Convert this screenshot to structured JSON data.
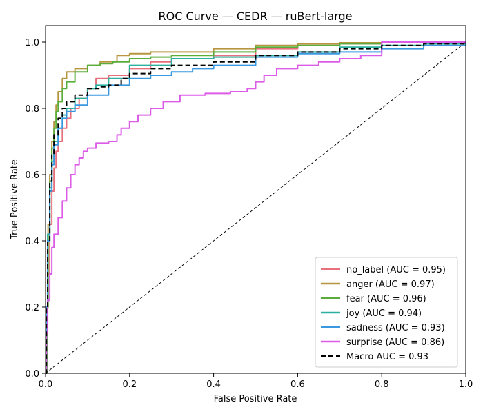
{
  "chart_data": {
    "type": "line",
    "title": "ROC Curve — CEDR — ruBert-large",
    "xlabel": "False Positive Rate",
    "ylabel": "True Positive Rate",
    "xlim": [
      0,
      1
    ],
    "ylim": [
      0,
      1.05
    ],
    "xticks": [
      0.0,
      0.2,
      0.4,
      0.6,
      0.8,
      1.0
    ],
    "yticks": [
      0.0,
      0.2,
      0.4,
      0.6,
      0.8,
      1.0
    ],
    "grid": false,
    "legend_position": "lower-right",
    "series": [
      {
        "name": "no_label (AUC = 0.95)",
        "color": "#e8707c",
        "style": "solid",
        "x": [
          0,
          0.002,
          0.005,
          0.01,
          0.015,
          0.02,
          0.025,
          0.03,
          0.04,
          0.05,
          0.06,
          0.08,
          0.1,
          0.12,
          0.15,
          0.2,
          0.25,
          0.3,
          0.4,
          0.5,
          0.6,
          0.7,
          0.8,
          0.9,
          1.0
        ],
        "y": [
          0,
          0.15,
          0.3,
          0.45,
          0.55,
          0.62,
          0.67,
          0.7,
          0.74,
          0.77,
          0.8,
          0.83,
          0.86,
          0.89,
          0.9,
          0.92,
          0.94,
          0.95,
          0.96,
          0.98,
          0.99,
          0.995,
          0.998,
          1.0,
          1.0
        ]
      },
      {
        "name": "anger (AUC = 0.97)",
        "color": "#b89640",
        "style": "solid",
        "x": [
          0,
          0.003,
          0.006,
          0.01,
          0.015,
          0.02,
          0.025,
          0.03,
          0.04,
          0.05,
          0.07,
          0.1,
          0.13,
          0.17,
          0.2,
          0.25,
          0.3,
          0.4,
          0.5,
          0.6,
          0.7,
          0.8,
          0.9,
          1.0
        ],
        "y": [
          0,
          0.2,
          0.45,
          0.6,
          0.7,
          0.76,
          0.81,
          0.85,
          0.89,
          0.91,
          0.92,
          0.93,
          0.94,
          0.96,
          0.965,
          0.97,
          0.97,
          0.98,
          0.99,
          0.995,
          0.998,
          1.0,
          1.0,
          1.0
        ]
      },
      {
        "name": "fear (AUC = 0.96)",
        "color": "#5aad3a",
        "style": "solid",
        "x": [
          0,
          0.003,
          0.006,
          0.01,
          0.015,
          0.02,
          0.025,
          0.03,
          0.04,
          0.05,
          0.07,
          0.1,
          0.13,
          0.16,
          0.2,
          0.25,
          0.3,
          0.4,
          0.5,
          0.6,
          0.7,
          0.8,
          0.9,
          1.0
        ],
        "y": [
          0,
          0.2,
          0.42,
          0.58,
          0.68,
          0.74,
          0.79,
          0.82,
          0.86,
          0.88,
          0.91,
          0.93,
          0.935,
          0.94,
          0.95,
          0.955,
          0.96,
          0.97,
          0.985,
          0.99,
          0.995,
          0.998,
          1.0,
          1.0
        ]
      },
      {
        "name": "joy (AUC = 0.94)",
        "color": "#2bb0a0",
        "style": "solid",
        "x": [
          0,
          0.002,
          0.005,
          0.01,
          0.015,
          0.02,
          0.03,
          0.04,
          0.05,
          0.07,
          0.1,
          0.12,
          0.15,
          0.2,
          0.3,
          0.4,
          0.5,
          0.6,
          0.7,
          0.8,
          0.9,
          1.0
        ],
        "y": [
          0,
          0.2,
          0.42,
          0.56,
          0.64,
          0.7,
          0.74,
          0.78,
          0.8,
          0.83,
          0.86,
          0.87,
          0.89,
          0.93,
          0.95,
          0.955,
          0.96,
          0.97,
          0.985,
          0.99,
          0.995,
          1.0
        ]
      },
      {
        "name": "sadness (AUC = 0.93)",
        "color": "#3a98e0",
        "style": "solid",
        "x": [
          0,
          0.002,
          0.005,
          0.01,
          0.015,
          0.02,
          0.03,
          0.04,
          0.05,
          0.07,
          0.1,
          0.15,
          0.2,
          0.25,
          0.3,
          0.35,
          0.4,
          0.5,
          0.6,
          0.7,
          0.8,
          0.9,
          1.0
        ],
        "y": [
          0,
          0.2,
          0.4,
          0.55,
          0.63,
          0.69,
          0.74,
          0.77,
          0.79,
          0.81,
          0.84,
          0.87,
          0.89,
          0.9,
          0.91,
          0.92,
          0.93,
          0.955,
          0.965,
          0.97,
          0.98,
          0.99,
          1.0
        ]
      },
      {
        "name": "surprise (AUC = 0.86)",
        "color": "#dc5ce8",
        "style": "solid",
        "x": [
          0,
          0.002,
          0.005,
          0.01,
          0.015,
          0.02,
          0.03,
          0.04,
          0.05,
          0.06,
          0.07,
          0.08,
          0.09,
          0.1,
          0.12,
          0.15,
          0.17,
          0.18,
          0.2,
          0.22,
          0.25,
          0.28,
          0.32,
          0.38,
          0.44,
          0.48,
          0.5,
          0.52,
          0.55,
          0.6,
          0.65,
          0.7,
          0.75,
          0.8,
          0.85,
          0.9,
          1.0
        ],
        "y": [
          0,
          0.12,
          0.22,
          0.3,
          0.38,
          0.42,
          0.47,
          0.52,
          0.56,
          0.6,
          0.63,
          0.65,
          0.67,
          0.68,
          0.695,
          0.7,
          0.72,
          0.74,
          0.76,
          0.78,
          0.8,
          0.82,
          0.84,
          0.845,
          0.85,
          0.86,
          0.88,
          0.9,
          0.92,
          0.93,
          0.94,
          0.95,
          0.96,
          1.0,
          1.0,
          1.0,
          1.0
        ]
      },
      {
        "name": "Macro AUC = 0.93",
        "color": "#000000",
        "style": "dashed",
        "x": [
          0,
          0.002,
          0.005,
          0.01,
          0.015,
          0.02,
          0.03,
          0.04,
          0.05,
          0.07,
          0.1,
          0.13,
          0.15,
          0.18,
          0.2,
          0.25,
          0.3,
          0.4,
          0.5,
          0.6,
          0.7,
          0.8,
          0.9,
          1.0
        ],
        "y": [
          0,
          0.2,
          0.4,
          0.58,
          0.66,
          0.72,
          0.77,
          0.8,
          0.82,
          0.84,
          0.86,
          0.865,
          0.87,
          0.89,
          0.905,
          0.92,
          0.93,
          0.94,
          0.96,
          0.97,
          0.98,
          0.99,
          0.995,
          1.0
        ]
      },
      {
        "name": "",
        "color": "#000000",
        "style": "diagonal",
        "x": [
          0,
          1
        ],
        "y": [
          0,
          1
        ]
      }
    ]
  }
}
